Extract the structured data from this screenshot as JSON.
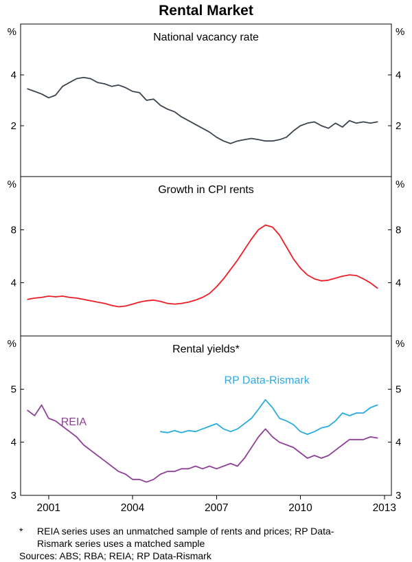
{
  "page": {
    "title": "Rental Market"
  },
  "footnotes": {
    "marker": "*",
    "note": "REIA series uses an unmatched sample of rents and prices; RP Data-Rismark series uses a matched sample",
    "sources": "Sources: ABS; RBA; REIA; RP Data-Rismark"
  },
  "chart_data": {
    "type": "line",
    "title": "Rental Market",
    "unit": "%",
    "xlim": [
      2000,
      2013.25
    ],
    "x_ticks": [
      2001,
      2004,
      2007,
      2010,
      2013
    ],
    "legend_position": "inline-labels",
    "grid": false,
    "panels": [
      {
        "title": "National vacancy rate",
        "ylim": [
          0,
          6
        ],
        "yticks": [
          2,
          4
        ],
        "labels": [],
        "series": [
          {
            "name": "National vacancy rate",
            "color": "#39434f",
            "x": [
              2000.25,
              2000.5,
              2000.75,
              2001,
              2001.25,
              2001.5,
              2001.75,
              2002,
              2002.25,
              2002.5,
              2002.75,
              2003,
              2003.25,
              2003.5,
              2003.75,
              2004,
              2004.25,
              2004.5,
              2004.75,
              2005,
              2005.25,
              2005.5,
              2005.75,
              2006,
              2006.25,
              2006.5,
              2006.75,
              2007,
              2007.25,
              2007.5,
              2007.75,
              2008,
              2008.25,
              2008.5,
              2008.75,
              2009,
              2009.25,
              2009.5,
              2009.75,
              2010,
              2010.25,
              2010.5,
              2010.75,
              2011,
              2011.25,
              2011.5,
              2011.75,
              2012,
              2012.25,
              2012.5,
              2012.75
            ],
            "values": [
              3.45,
              3.35,
              3.25,
              3.1,
              3.2,
              3.55,
              3.7,
              3.85,
              3.9,
              3.85,
              3.7,
              3.65,
              3.55,
              3.6,
              3.5,
              3.35,
              3.3,
              3.0,
              3.05,
              2.8,
              2.65,
              2.55,
              2.35,
              2.2,
              2.05,
              1.9,
              1.75,
              1.55,
              1.4,
              1.3,
              1.4,
              1.45,
              1.5,
              1.45,
              1.4,
              1.4,
              1.45,
              1.55,
              1.8,
              2.0,
              2.1,
              2.15,
              2.0,
              1.9,
              2.1,
              1.95,
              2.2,
              2.1,
              2.15,
              2.1,
              2.15
            ]
          }
        ]
      },
      {
        "title": "Growth in CPI rents",
        "ylim": [
          0,
          12
        ],
        "yticks": [
          4,
          8
        ],
        "labels": [],
        "series": [
          {
            "name": "Growth in CPI rents",
            "color": "#ed1c24",
            "x": [
              2000.25,
              2000.5,
              2000.75,
              2001,
              2001.25,
              2001.5,
              2001.75,
              2002,
              2002.25,
              2002.5,
              2002.75,
              2003,
              2003.25,
              2003.5,
              2003.75,
              2004,
              2004.25,
              2004.5,
              2004.75,
              2005,
              2005.25,
              2005.5,
              2005.75,
              2006,
              2006.25,
              2006.5,
              2006.75,
              2007,
              2007.25,
              2007.5,
              2007.75,
              2008,
              2008.25,
              2008.5,
              2008.75,
              2009,
              2009.25,
              2009.5,
              2009.75,
              2010,
              2010.25,
              2010.5,
              2010.75,
              2011,
              2011.25,
              2011.5,
              2011.75,
              2012,
              2012.25,
              2012.5,
              2012.75
            ],
            "values": [
              2.75,
              2.85,
              2.9,
              3.0,
              2.95,
              3.0,
              2.9,
              2.85,
              2.75,
              2.65,
              2.55,
              2.45,
              2.3,
              2.2,
              2.25,
              2.4,
              2.55,
              2.65,
              2.7,
              2.6,
              2.45,
              2.4,
              2.45,
              2.55,
              2.7,
              2.9,
              3.2,
              3.7,
              4.3,
              5.0,
              5.7,
              6.5,
              7.3,
              8.0,
              8.35,
              8.2,
              7.6,
              6.7,
              5.8,
              5.1,
              4.6,
              4.3,
              4.15,
              4.2,
              4.35,
              4.5,
              4.6,
              4.55,
              4.3,
              4.0,
              3.6
            ]
          }
        ]
      },
      {
        "title": "Rental yields*",
        "ylim": [
          3,
          6
        ],
        "yticks": [
          3,
          4,
          5
        ],
        "labels": [
          {
            "text": "REIA",
            "color": "#8f3f97",
            "x": 2001.9,
            "y": 4.32
          },
          {
            "text": "RP Data-Rismark",
            "color": "#29abe2",
            "x": 2008.8,
            "y": 5.1
          }
        ],
        "series": [
          {
            "name": "REIA",
            "color": "#8f3f97",
            "x": [
              2000.25,
              2000.5,
              2000.75,
              2001,
              2001.25,
              2001.5,
              2001.75,
              2002,
              2002.25,
              2002.5,
              2002.75,
              2003,
              2003.25,
              2003.5,
              2003.75,
              2004,
              2004.25,
              2004.5,
              2004.75,
              2005,
              2005.25,
              2005.5,
              2005.75,
              2006,
              2006.25,
              2006.5,
              2006.75,
              2007,
              2007.25,
              2007.5,
              2007.75,
              2008,
              2008.25,
              2008.5,
              2008.75,
              2009,
              2009.25,
              2009.5,
              2009.75,
              2010,
              2010.25,
              2010.5,
              2010.75,
              2011,
              2011.25,
              2011.5,
              2011.75,
              2012,
              2012.25,
              2012.5,
              2012.75
            ],
            "values": [
              4.6,
              4.5,
              4.7,
              4.45,
              4.4,
              4.3,
              4.2,
              4.1,
              3.95,
              3.85,
              3.75,
              3.65,
              3.55,
              3.45,
              3.4,
              3.3,
              3.3,
              3.25,
              3.3,
              3.4,
              3.45,
              3.45,
              3.5,
              3.5,
              3.55,
              3.5,
              3.55,
              3.5,
              3.55,
              3.6,
              3.55,
              3.7,
              3.9,
              4.1,
              4.25,
              4.1,
              4.0,
              3.95,
              3.9,
              3.8,
              3.7,
              3.75,
              3.7,
              3.75,
              3.85,
              3.95,
              4.05,
              4.05,
              4.05,
              4.1,
              4.08
            ]
          },
          {
            "name": "RP Data-Rismark",
            "color": "#29abe2",
            "x": [
              2005,
              2005.25,
              2005.5,
              2005.75,
              2006,
              2006.25,
              2006.5,
              2006.75,
              2007,
              2007.25,
              2007.5,
              2007.75,
              2008,
              2008.25,
              2008.5,
              2008.75,
              2009,
              2009.25,
              2009.5,
              2009.75,
              2010,
              2010.25,
              2010.5,
              2010.75,
              2011,
              2011.25,
              2011.5,
              2011.75,
              2012,
              2012.25,
              2012.5,
              2012.75
            ],
            "values": [
              4.2,
              4.18,
              4.22,
              4.18,
              4.22,
              4.2,
              4.25,
              4.3,
              4.35,
              4.25,
              4.2,
              4.25,
              4.35,
              4.45,
              4.62,
              4.8,
              4.65,
              4.45,
              4.4,
              4.33,
              4.2,
              4.15,
              4.2,
              4.27,
              4.3,
              4.4,
              4.55,
              4.5,
              4.55,
              4.55,
              4.65,
              4.7
            ]
          }
        ]
      }
    ]
  }
}
